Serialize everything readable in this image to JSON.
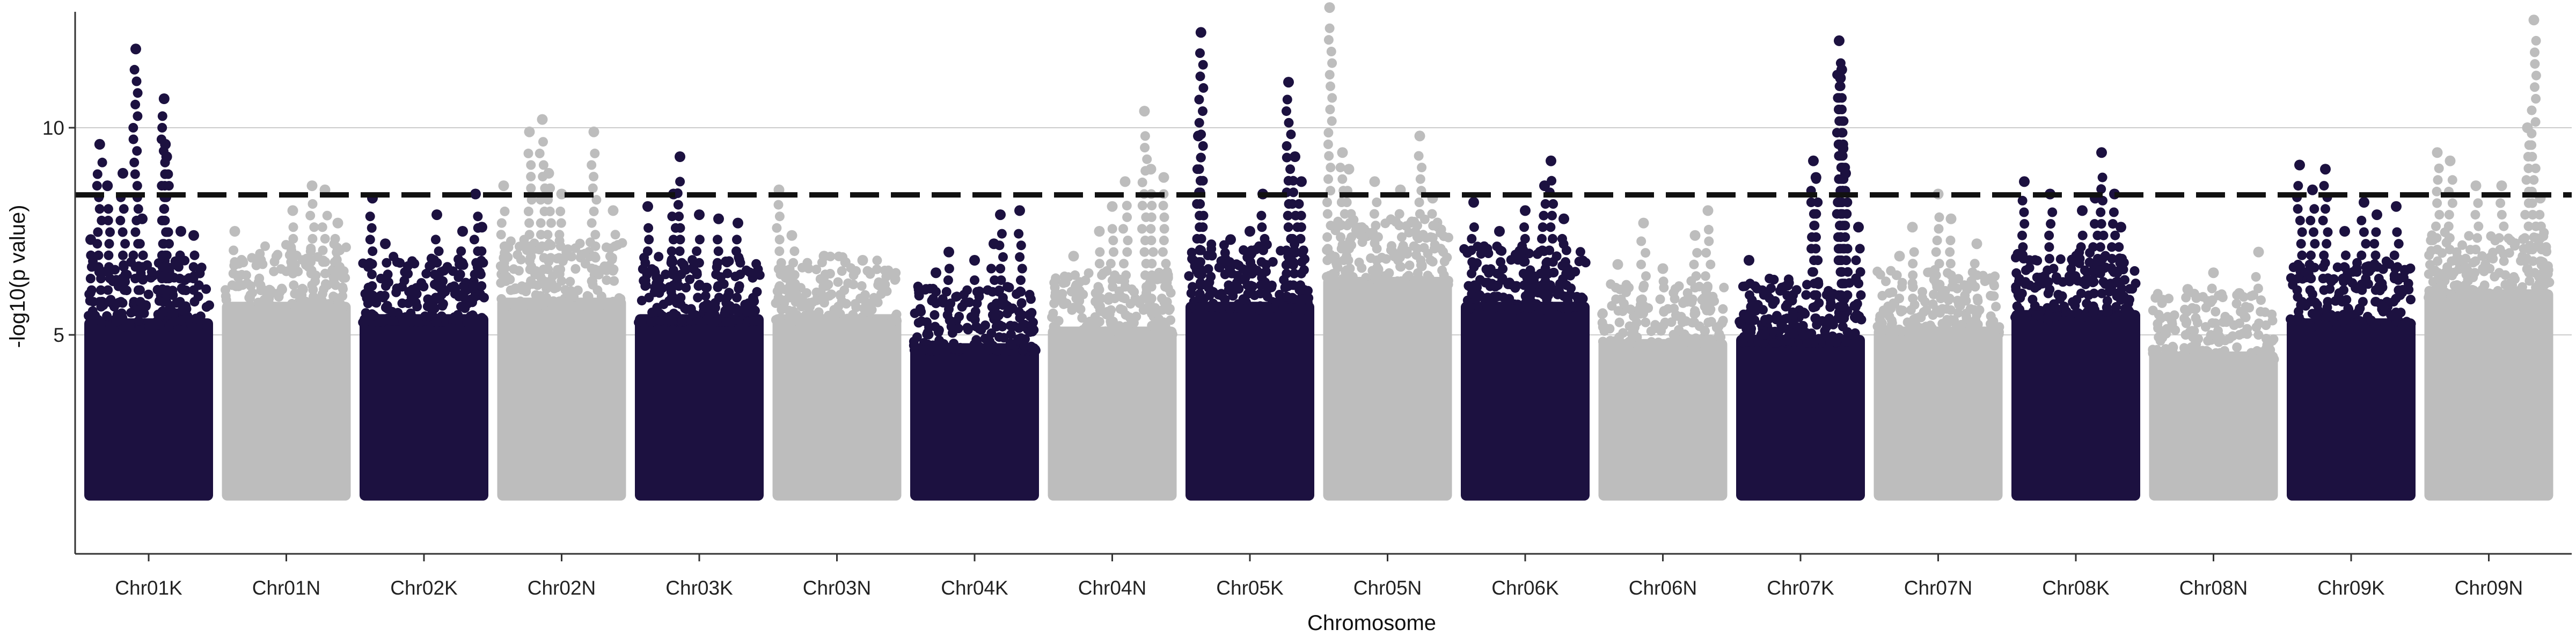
{
  "chart_data": {
    "type": "scatter",
    "subtype": "manhattan",
    "title": "",
    "xlabel": "Chromosome",
    "ylabel": "-log10(p value)",
    "ylim": [
      0,
      13.2
    ],
    "yticks": [
      5,
      10
    ],
    "grid": "horizontal major lines at y ticks",
    "legend": "none",
    "significance_threshold": 8.38,
    "colors": {
      "odd": "#1c1140",
      "even": "#bdbdbd",
      "threshold": "#111111",
      "grid": "#cccccc",
      "axis": "#333333"
    },
    "categories": [
      "Chr01K",
      "Chr01N",
      "Chr02K",
      "Chr02N",
      "Chr03K",
      "Chr03N",
      "Chr04K",
      "Chr04N",
      "Chr05K",
      "Chr05N",
      "Chr06K",
      "Chr06N",
      "Chr07K",
      "Chr07N",
      "Chr08K",
      "Chr08N",
      "Chr09K",
      "Chr09N"
    ],
    "series": [
      {
        "chromosome": "Chr01K",
        "base_max": 5.8,
        "peaks": [
          [
            0.05,
            7.3
          ],
          [
            0.12,
            9.6
          ],
          [
            0.18,
            8.6
          ],
          [
            0.3,
            8.9
          ],
          [
            0.4,
            11.9
          ],
          [
            0.45,
            7.8
          ],
          [
            0.62,
            10.7
          ],
          [
            0.63,
            9.6
          ],
          [
            0.64,
            9.3
          ],
          [
            0.75,
            7.5
          ],
          [
            0.85,
            7.4
          ]
        ]
      },
      {
        "chromosome": "Chr01N",
        "base_max": 6.2,
        "peaks": [
          [
            0.1,
            7.5
          ],
          [
            0.3,
            6.8
          ],
          [
            0.55,
            8.0
          ],
          [
            0.7,
            8.6
          ],
          [
            0.8,
            8.5
          ],
          [
            0.9,
            7.7
          ]
        ]
      },
      {
        "chromosome": "Chr02K",
        "base_max": 5.9,
        "peaks": [
          [
            0.1,
            8.3
          ],
          [
            0.2,
            7.2
          ],
          [
            0.6,
            7.9
          ],
          [
            0.8,
            7.5
          ],
          [
            0.9,
            8.4
          ],
          [
            0.95,
            7.6
          ]
        ]
      },
      {
        "chromosome": "Chr02N",
        "base_max": 6.3,
        "peaks": [
          [
            0.05,
            8.6
          ],
          [
            0.25,
            9.9
          ],
          [
            0.35,
            10.2
          ],
          [
            0.4,
            8.9
          ],
          [
            0.5,
            8.4
          ],
          [
            0.75,
            9.9
          ],
          [
            0.9,
            8.0
          ]
        ]
      },
      {
        "chromosome": "Chr03K",
        "base_max": 5.9,
        "peaks": [
          [
            0.1,
            8.1
          ],
          [
            0.3,
            8.4
          ],
          [
            0.35,
            9.3
          ],
          [
            0.5,
            7.9
          ],
          [
            0.65,
            7.8
          ],
          [
            0.8,
            7.7
          ]
        ]
      },
      {
        "chromosome": "Chr03N",
        "base_max": 5.9,
        "peaks": [
          [
            0.05,
            8.5
          ],
          [
            0.15,
            7.4
          ],
          [
            0.4,
            6.9
          ],
          [
            0.7,
            6.8
          ]
        ]
      },
      {
        "chromosome": "Chr04K",
        "base_max": 5.2,
        "peaks": [
          [
            0.2,
            6.5
          ],
          [
            0.3,
            7.0
          ],
          [
            0.5,
            6.8
          ],
          [
            0.65,
            7.2
          ],
          [
            0.7,
            7.9
          ],
          [
            0.85,
            8.0
          ]
        ]
      },
      {
        "chromosome": "Chr04N",
        "base_max": 5.6,
        "peaks": [
          [
            0.2,
            6.9
          ],
          [
            0.4,
            7.5
          ],
          [
            0.5,
            8.1
          ],
          [
            0.6,
            8.7
          ],
          [
            0.75,
            10.4
          ],
          [
            0.8,
            9.0
          ],
          [
            0.9,
            8.8
          ]
        ]
      },
      {
        "chromosome": "Chr05K",
        "base_max": 6.2,
        "peaks": [
          [
            0.1,
            9.8
          ],
          [
            0.12,
            12.3
          ],
          [
            0.35,
            7.3
          ],
          [
            0.5,
            7.5
          ],
          [
            0.6,
            8.4
          ],
          [
            0.8,
            11.1
          ],
          [
            0.85,
            9.3
          ],
          [
            0.9,
            8.7
          ]
        ]
      },
      {
        "chromosome": "Chr05N",
        "base_max": 6.8,
        "peaks": [
          [
            0.05,
            12.9
          ],
          [
            0.15,
            9.4
          ],
          [
            0.2,
            9.0
          ],
          [
            0.4,
            8.7
          ],
          [
            0.6,
            8.5
          ],
          [
            0.75,
            9.8
          ],
          [
            0.85,
            8.3
          ]
        ]
      },
      {
        "chromosome": "Chr06K",
        "base_max": 6.2,
        "peaks": [
          [
            0.1,
            8.2
          ],
          [
            0.3,
            7.5
          ],
          [
            0.5,
            8.0
          ],
          [
            0.65,
            8.6
          ],
          [
            0.7,
            9.2
          ],
          [
            0.8,
            7.8
          ]
        ]
      },
      {
        "chromosome": "Chr06N",
        "base_max": 5.3,
        "peaks": [
          [
            0.15,
            6.7
          ],
          [
            0.35,
            7.7
          ],
          [
            0.5,
            6.6
          ],
          [
            0.75,
            7.4
          ],
          [
            0.85,
            8.0
          ]
        ]
      },
      {
        "chromosome": "Chr07K",
        "base_max": 5.4,
        "peaks": [
          [
            0.1,
            6.8
          ],
          [
            0.4,
            6.2
          ],
          [
            0.6,
            9.2
          ],
          [
            0.62,
            8.8
          ],
          [
            0.8,
            12.1
          ],
          [
            0.81,
            11.2
          ],
          [
            0.82,
            11.4
          ],
          [
            0.83,
            9.5
          ],
          [
            0.85,
            8.9
          ],
          [
            0.95,
            7.6
          ]
        ]
      },
      {
        "chromosome": "Chr07N",
        "base_max": 5.6,
        "peaks": [
          [
            0.2,
            6.9
          ],
          [
            0.3,
            7.6
          ],
          [
            0.5,
            8.4
          ],
          [
            0.6,
            7.8
          ],
          [
            0.8,
            7.2
          ]
        ]
      },
      {
        "chromosome": "Chr08K",
        "base_max": 6.0,
        "peaks": [
          [
            0.1,
            8.7
          ],
          [
            0.3,
            8.4
          ],
          [
            0.55,
            8.0
          ],
          [
            0.65,
            8.3
          ],
          [
            0.7,
            9.4
          ],
          [
            0.8,
            8.4
          ],
          [
            0.85,
            7.6
          ]
        ]
      },
      {
        "chromosome": "Chr08N",
        "base_max": 5.0,
        "peaks": [
          [
            0.3,
            6.1
          ],
          [
            0.5,
            6.5
          ],
          [
            0.7,
            6.0
          ],
          [
            0.85,
            7.0
          ]
        ]
      },
      {
        "chromosome": "Chr09K",
        "base_max": 5.8,
        "peaks": [
          [
            0.1,
            9.1
          ],
          [
            0.2,
            8.5
          ],
          [
            0.3,
            9.0
          ],
          [
            0.45,
            7.5
          ],
          [
            0.6,
            8.2
          ],
          [
            0.7,
            7.9
          ],
          [
            0.85,
            8.1
          ]
        ]
      },
      {
        "chromosome": "Chr09N",
        "base_max": 6.5,
        "peaks": [
          [
            0.1,
            9.4
          ],
          [
            0.2,
            9.2
          ],
          [
            0.4,
            8.6
          ],
          [
            0.6,
            8.6
          ],
          [
            0.8,
            10.0
          ],
          [
            0.85,
            12.6
          ],
          [
            0.9,
            8.3
          ]
        ]
      }
    ]
  }
}
